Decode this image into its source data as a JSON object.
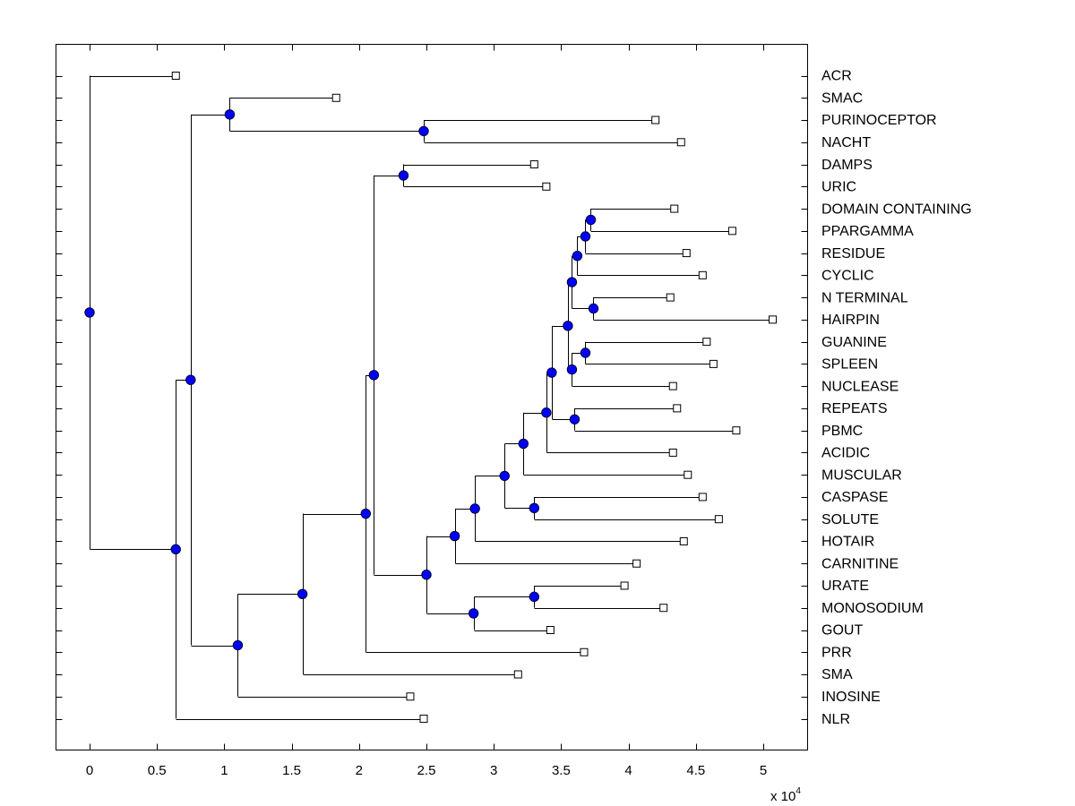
{
  "chart_data": {
    "type": "dendrogram",
    "title": "",
    "xlabel": "",
    "ylabel": "",
    "x_multiplier_label": "x 10",
    "x_multiplier_exponent": "4",
    "xlim": [
      -0.25,
      5.33
    ],
    "xticks": [
      0,
      0.5,
      1,
      1.5,
      2,
      2.5,
      3,
      3.5,
      4,
      4.5,
      5
    ],
    "xtick_labels": [
      "0",
      "0.5",
      "1",
      "1.5",
      "2",
      "2.5",
      "3",
      "3.5",
      "4",
      "4.5",
      "5"
    ],
    "grid": false,
    "node_color": "#0000ff",
    "leaf_marker": "open-square",
    "leaves": [
      {
        "label": "ACR",
        "x": 0.64
      },
      {
        "label": "SMAC",
        "x": 1.83
      },
      {
        "label": "PURINOCEPTOR",
        "x": 4.2
      },
      {
        "label": "NACHT",
        "x": 4.39
      },
      {
        "label": "DAMPS",
        "x": 3.3
      },
      {
        "label": "URIC",
        "x": 3.39
      },
      {
        "label": "DOMAIN CONTAINING",
        "x": 4.34
      },
      {
        "label": "PPARGAMMA",
        "x": 4.77
      },
      {
        "label": "RESIDUE",
        "x": 4.43
      },
      {
        "label": "CYCLIC",
        "x": 4.55
      },
      {
        "label": "N TERMINAL",
        "x": 4.31
      },
      {
        "label": "HAIRPIN",
        "x": 5.07
      },
      {
        "label": "GUANINE",
        "x": 4.58
      },
      {
        "label": "SPLEEN",
        "x": 4.63
      },
      {
        "label": "NUCLEASE",
        "x": 4.33
      },
      {
        "label": "REPEATS",
        "x": 4.36
      },
      {
        "label": "PBMC",
        "x": 4.8
      },
      {
        "label": "ACIDIC",
        "x": 4.33
      },
      {
        "label": "MUSCULAR",
        "x": 4.44
      },
      {
        "label": "CASPASE",
        "x": 4.55
      },
      {
        "label": "SOLUTE",
        "x": 4.67
      },
      {
        "label": "HOTAIR",
        "x": 4.41
      },
      {
        "label": "CARNITINE",
        "x": 4.06
      },
      {
        "label": "URATE",
        "x": 3.97
      },
      {
        "label": "MONOSODIUM",
        "x": 4.26
      },
      {
        "label": "GOUT",
        "x": 3.42
      },
      {
        "label": "PRR",
        "x": 3.67
      },
      {
        "label": "SMA",
        "x": 3.18
      },
      {
        "label": "INOSINE",
        "x": 2.38
      },
      {
        "label": "NLR",
        "x": 2.48
      }
    ],
    "tree": {
      "x": 0.0,
      "children": [
        {
          "leaf": "ACR"
        },
        {
          "x": 0.64,
          "children": [
            {
              "x": 0.75,
              "children": [
                {
                  "x": 1.04,
                  "children": [
                    {
                      "leaf": "SMAC"
                    },
                    {
                      "x": 2.48,
                      "children": [
                        {
                          "leaf": "PURINOCEPTOR"
                        },
                        {
                          "leaf": "NACHT"
                        }
                      ]
                    }
                  ]
                },
                {
                  "x": 1.1,
                  "children": [
                    {
                      "x": 1.58,
                      "children": [
                        {
                          "x": 2.05,
                          "children": [
                            {
                              "x": 2.11,
                              "children": [
                                {
                                  "x": 2.33,
                                  "children": [
                                    {
                                      "leaf": "DAMPS"
                                    },
                                    {
                                      "leaf": "URIC"
                                    }
                                  ]
                                },
                                {
                                  "x": 2.5,
                                  "children": [
                                    {
                                      "x": 2.71,
                                      "children": [
                                        {
                                          "x": 2.86,
                                          "children": [
                                            {
                                              "x": 3.08,
                                              "children": [
                                                {
                                                  "x": 3.22,
                                                  "children": [
                                                    {
                                                      "x": 3.39,
                                                      "children": [
                                                        {
                                                          "x": 3.43,
                                                          "children": [
                                                            {
                                                              "x": 3.55,
                                                              "children": [
                                                                {
                                                                  "x": 3.58,
                                                                  "children": [
                                                                    {
                                                                      "x": 3.62,
                                                                      "children": [
                                                                        {
                                                                          "x": 3.68,
                                                                          "children": [
                                                                            {
                                                                              "x": 3.72,
                                                                              "children": [
                                                                                {
                                                                                  "leaf": "DOMAIN CONTAINING"
                                                                                },
                                                                                {
                                                                                  "leaf": "PPARGAMMA"
                                                                                }
                                                                              ]
                                                                            },
                                                                            {
                                                                              "leaf": "RESIDUE"
                                                                            }
                                                                          ]
                                                                        },
                                                                        {
                                                                          "leaf": "CYCLIC"
                                                                        }
                                                                      ]
                                                                    },
                                                                    {
                                                                      "x": 3.74,
                                                                      "children": [
                                                                        {
                                                                          "leaf": "N TERMINAL"
                                                                        },
                                                                        {
                                                                          "leaf": "HAIRPIN"
                                                                        }
                                                                      ]
                                                                    }
                                                                  ]
                                                                },
                                                                {
                                                                  "x": 3.58,
                                                                  "children": [
                                                                    {
                                                                      "x": 3.68,
                                                                      "children": [
                                                                        {
                                                                          "leaf": "GUANINE"
                                                                        },
                                                                        {
                                                                          "leaf": "SPLEEN"
                                                                        }
                                                                      ]
                                                                    },
                                                                    {
                                                                      "leaf": "NUCLEASE"
                                                                    }
                                                                  ]
                                                                }
                                                              ]
                                                            },
                                                            {
                                                              "x": 3.6,
                                                              "children": [
                                                                {
                                                                  "leaf": "REPEATS"
                                                                },
                                                                {
                                                                  "leaf": "PBMC"
                                                                }
                                                              ]
                                                            }
                                                          ]
                                                        },
                                                        {
                                                          "leaf": "ACIDIC"
                                                        }
                                                      ]
                                                    },
                                                    {
                                                      "leaf": "MUSCULAR"
                                                    }
                                                  ]
                                                },
                                                {
                                                  "x": 3.3,
                                                  "children": [
                                                    {
                                                      "leaf": "CASPASE"
                                                    },
                                                    {
                                                      "leaf": "SOLUTE"
                                                    }
                                                  ]
                                                }
                                              ]
                                            },
                                            {
                                              "leaf": "HOTAIR"
                                            }
                                          ]
                                        },
                                        {
                                          "leaf": "CARNITINE"
                                        }
                                      ]
                                    },
                                    {
                                      "x": 2.85,
                                      "children": [
                                        {
                                          "x": 3.3,
                                          "children": [
                                            {
                                              "leaf": "URATE"
                                            },
                                            {
                                              "leaf": "MONOSODIUM"
                                            }
                                          ]
                                        },
                                        {
                                          "leaf": "GOUT"
                                        }
                                      ]
                                    }
                                  ]
                                }
                              ]
                            },
                            {
                              "leaf": "PRR"
                            }
                          ]
                        },
                        {
                          "leaf": "SMA"
                        }
                      ]
                    },
                    {
                      "leaf": "INOSINE"
                    }
                  ]
                }
              ]
            },
            {
              "leaf": "NLR"
            }
          ]
        }
      ]
    }
  }
}
